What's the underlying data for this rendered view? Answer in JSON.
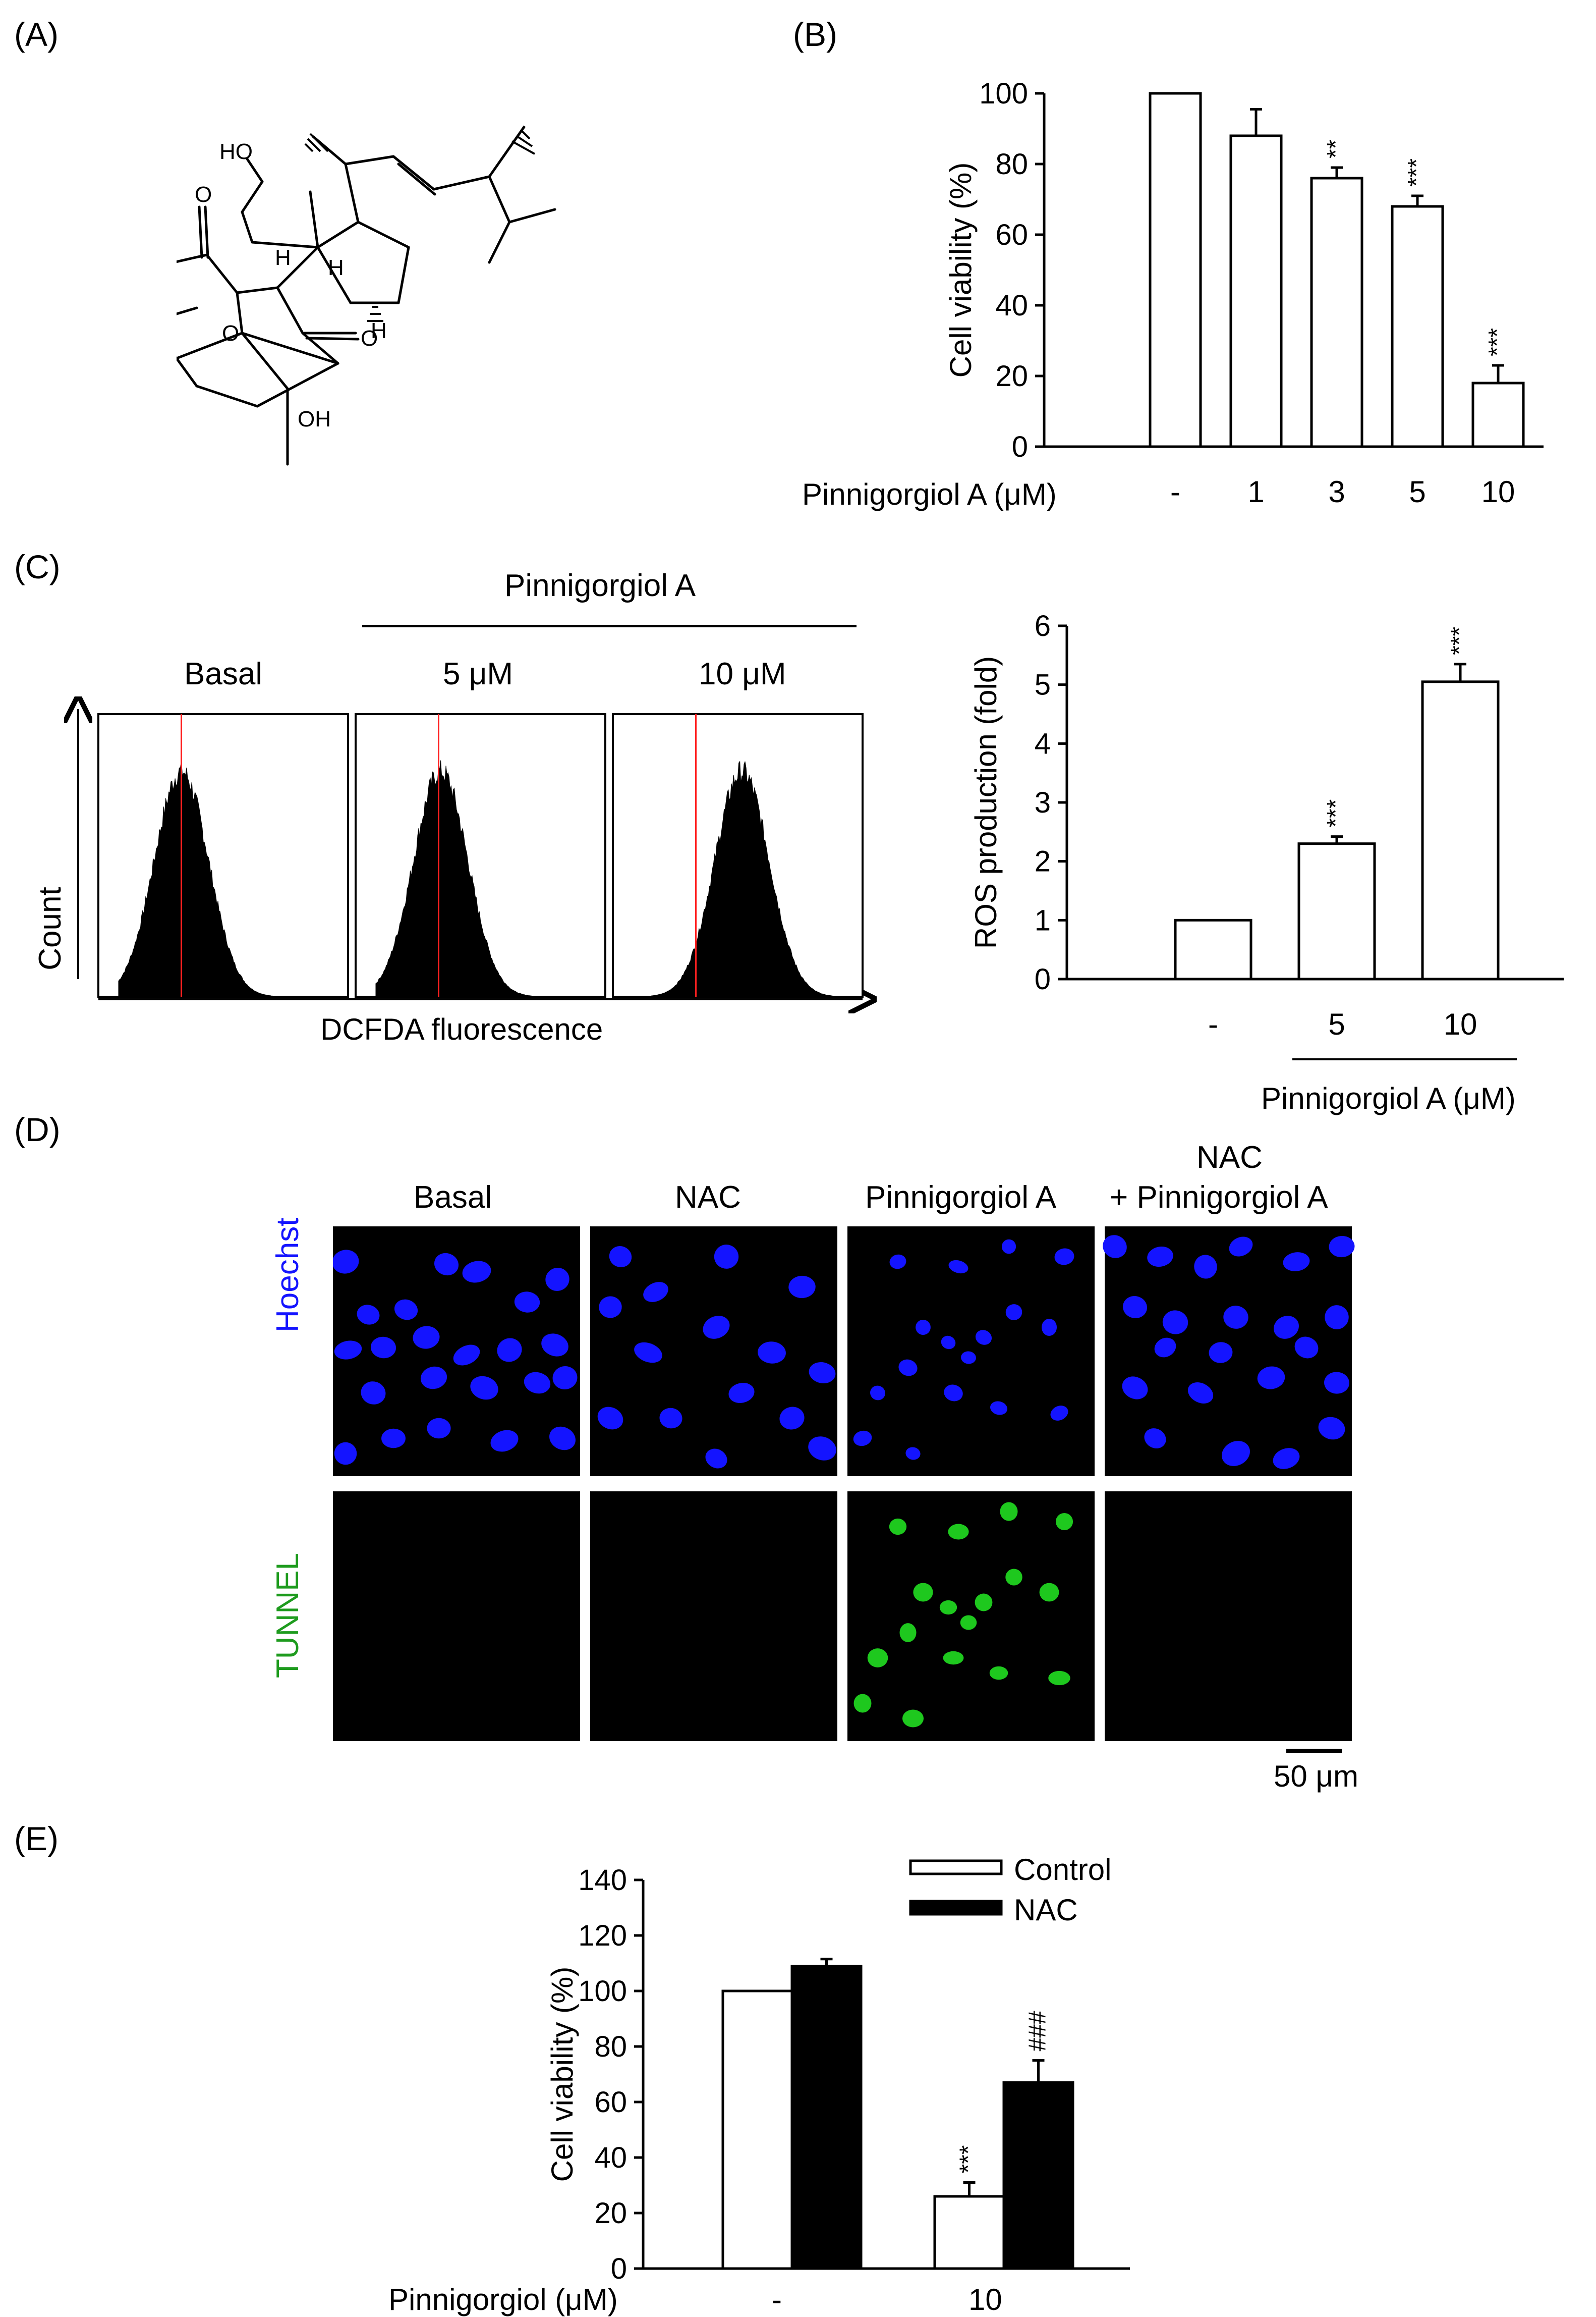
{
  "panels": {
    "A": {
      "label": "(A)",
      "atoms": [
        "HO",
        "H",
        "H",
        "H",
        "O",
        "O",
        "O",
        "OH"
      ]
    },
    "B": {
      "label": "(B)",
      "x_title": "Pinnigorgiol A (μM)"
    },
    "C": {
      "label": "(C)",
      "treatment_header": "Pinnigorgiol A",
      "flow_titles": [
        "Basal",
        "5 μM",
        "10 μM"
      ],
      "flow_ylabel": "Count",
      "flow_xlabel": "DCFDA fluorescence",
      "bar_xtitle": "Pinnigorgiol A (μM)"
    },
    "D": {
      "label": "(D)",
      "columns": [
        "Basal",
        "NAC",
        "Pinnigorgiol A",
        "NAC",
        "+ Pinnigorgiol A"
      ],
      "rows": [
        "Hoechst",
        "TUNNEL"
      ],
      "scale_bar": "50 μm",
      "colors": {
        "hoechst": "#1414ff",
        "tunnel": "#1ec81e",
        "background": "#000000"
      }
    },
    "E": {
      "label": "(E)",
      "x_title": "Pinnigorgiol (μM)"
    }
  },
  "chart_data": [
    {
      "id": "B",
      "type": "bar",
      "categories": [
        "-",
        "1",
        "3",
        "5",
        "10"
      ],
      "values": [
        100,
        88,
        76,
        68,
        18
      ],
      "errors": [
        0,
        7.5,
        3,
        3,
        5
      ],
      "annotations": [
        "",
        "",
        "**",
        "***",
        "***"
      ],
      "ylabel": "Cell viability (%)",
      "xlabel": "Pinnigorgiol A (μM)",
      "ylim": [
        0,
        100
      ],
      "yticks": [
        0,
        20,
        40,
        60,
        80,
        100
      ],
      "bar_color": "#ffffff"
    },
    {
      "id": "C",
      "type": "bar",
      "categories": [
        "-",
        "5",
        "10"
      ],
      "values": [
        1,
        2.3,
        5.05
      ],
      "errors": [
        0,
        0.12,
        0.3
      ],
      "annotations": [
        "",
        "***",
        "***"
      ],
      "ylabel": "ROS production (fold)",
      "xlabel": "Pinnigorgiol A (μM)",
      "ylim": [
        0,
        6
      ],
      "yticks": [
        0,
        1,
        2,
        3,
        4,
        5,
        6
      ],
      "bar_color": "#ffffff"
    },
    {
      "id": "E",
      "type": "bar",
      "categories": [
        "-",
        "10"
      ],
      "series": [
        {
          "name": "Control",
          "values": [
            100,
            26
          ],
          "errors": [
            0,
            5
          ],
          "annotations": [
            "",
            "***"
          ],
          "color": "#ffffff"
        },
        {
          "name": "NAC",
          "values": [
            109,
            67
          ],
          "errors": [
            2.5,
            8
          ],
          "annotations": [
            "",
            "###"
          ],
          "color": "#000000"
        }
      ],
      "ylabel": "Cell viability (%)",
      "xlabel": "Pinnigorgiol (μM)",
      "ylim": [
        0,
        140
      ],
      "yticks": [
        0,
        20,
        40,
        60,
        80,
        100,
        120,
        140
      ],
      "legend": "top-right"
    }
  ]
}
